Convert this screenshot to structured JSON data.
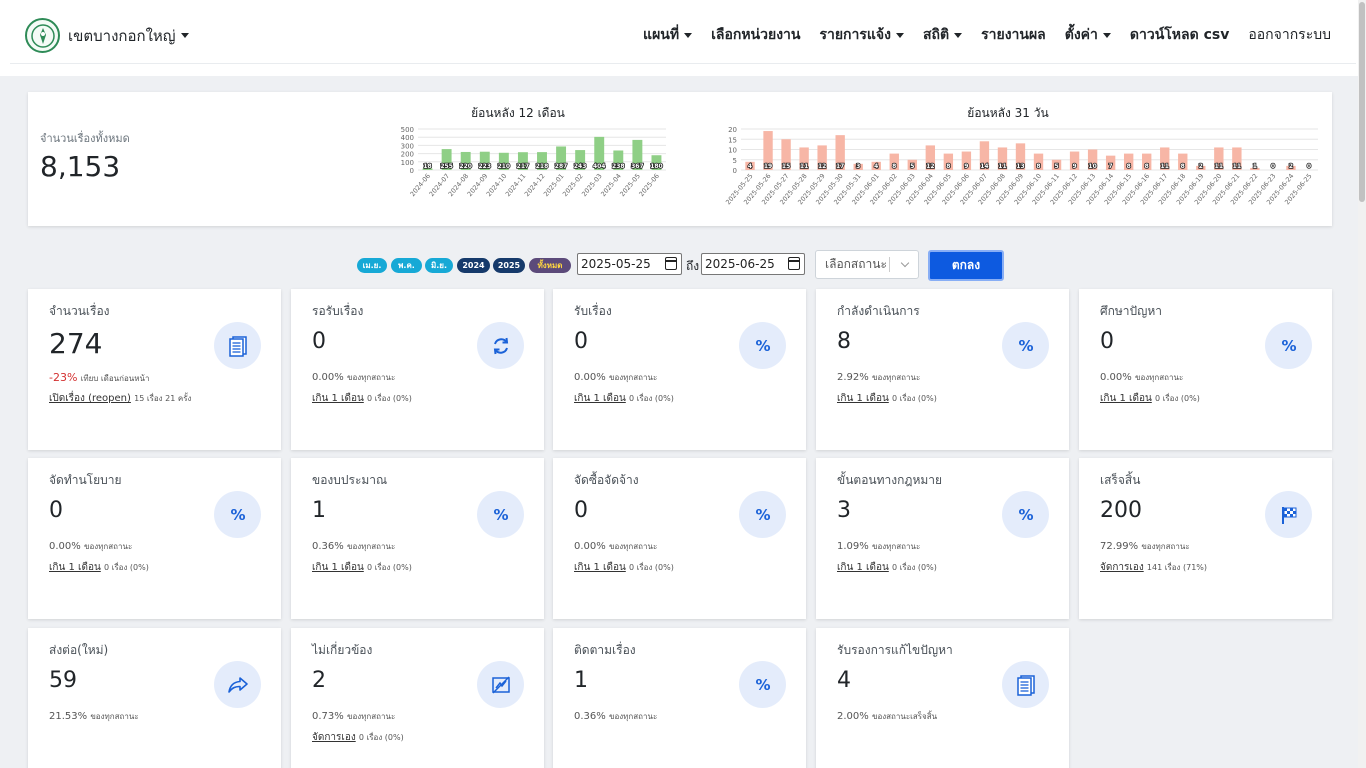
{
  "navbar": {
    "brand": "เขตบางกอกใหญ่",
    "items": [
      {
        "label": "แผนที่",
        "dropdown": true,
        "bold": true
      },
      {
        "label": "เลือกหน่วยงาน",
        "dropdown": false,
        "bold": true
      },
      {
        "label": "รายการแจ้ง",
        "dropdown": true,
        "bold": true
      },
      {
        "label": "สถิติ",
        "dropdown": true,
        "bold": true
      },
      {
        "label": "รายงานผล",
        "dropdown": false,
        "bold": true
      },
      {
        "label": "ตั้งค่า",
        "dropdown": true,
        "bold": true
      },
      {
        "label": "ดาวน์โหลด csv",
        "dropdown": false,
        "bold": true
      },
      {
        "label": "ออกจากระบบ",
        "dropdown": false,
        "bold": false
      }
    ]
  },
  "summary": {
    "label": "จำนวนเรื่องทั้งหมด",
    "total": "8,153"
  },
  "chart_data": [
    {
      "type": "bar",
      "title": "ย้อนหลัง 12 เดือน",
      "color": "#8fcf86",
      "ylim": [
        0,
        500
      ],
      "yticks": [
        "500",
        "400",
        "300",
        "200",
        "100",
        "0"
      ],
      "categories": [
        "2024-06",
        "2024-07",
        "2024-08",
        "2024-09",
        "2024-10",
        "2024-11",
        "2024-12",
        "2025-01",
        "2025-02",
        "2025-03",
        "2025-04",
        "2025-05",
        "2025-06"
      ],
      "values": [
        18,
        255,
        220,
        223,
        210,
        217,
        218,
        287,
        243,
        404,
        238,
        367,
        180
      ],
      "labels": [
        "18",
        "255",
        "220",
        "223",
        "210",
        "217",
        "218",
        "287",
        "243",
        "404",
        "238",
        "367",
        "180"
      ]
    },
    {
      "type": "bar",
      "title": "ย้อนหลัง 31 วัน",
      "color": "#f7b6a6",
      "ylim": [
        0,
        20
      ],
      "yticks": [
        "20",
        "15",
        "10",
        "5",
        "0"
      ],
      "categories": [
        "2025-05-25",
        "2025-05-26",
        "2025-05-27",
        "2025-05-28",
        "2025-05-29",
        "2025-05-30",
        "2025-05-31",
        "2025-06-01",
        "2025-06-02",
        "2025-06-03",
        "2025-06-04",
        "2025-06-05",
        "2025-06-06",
        "2025-06-07",
        "2025-06-08",
        "2025-06-09",
        "2025-06-10",
        "2025-06-11",
        "2025-06-12",
        "2025-06-13",
        "2025-06-14",
        "2025-06-15",
        "2025-06-16",
        "2025-06-17",
        "2025-06-18",
        "2025-06-19",
        "2025-06-20",
        "2025-06-21",
        "2025-06-22",
        "2025-06-23",
        "2025-06-24",
        "2025-06-25"
      ],
      "values": [
        4,
        19,
        15,
        11,
        12,
        17,
        3,
        4,
        8,
        5,
        12,
        8,
        9,
        14,
        11,
        13,
        8,
        5,
        9,
        10,
        7,
        8,
        8,
        11,
        8,
        2,
        11,
        11,
        1,
        0,
        2,
        0
      ],
      "labels": [
        "4",
        "19",
        "15",
        "11",
        "12",
        "17",
        "3",
        "4",
        "8",
        "5",
        "12",
        "8",
        "9",
        "14",
        "11",
        "13",
        "8",
        "5",
        "9",
        "10",
        "7",
        "8",
        "8",
        "11",
        "8",
        "2",
        "11",
        "11",
        "1",
        "0",
        "2",
        "0"
      ]
    }
  ],
  "filters": {
    "pills": [
      {
        "label": "เม.ย.",
        "style": "cyan"
      },
      {
        "label": "พ.ค.",
        "style": "cyan"
      },
      {
        "label": "มิ.ย.",
        "style": "cyan"
      },
      {
        "label": "2024",
        "style": "navy"
      },
      {
        "label": "2025",
        "style": "navy"
      },
      {
        "label": "ทั้งหมด",
        "style": "purple"
      }
    ],
    "date_from": "2025-05-25",
    "to_label": "ถึง",
    "date_to": "2025-06-25",
    "status_placeholder": "เลือกสถานะ",
    "ok_label": "ตกลง"
  },
  "cards": [
    {
      "title": "จำนวนเรื่อง",
      "value": "274",
      "icon": "documents-icon",
      "change": "-23%",
      "change_note": "เทียบ เดือนก่อนหน้า",
      "link": "เปิดเรื่อง (reopen)",
      "link_note": "15 เรื่อง 21 ครั้ง"
    },
    {
      "title": "รอรับเรื่อง",
      "value": "0",
      "icon": "refresh-icon",
      "pct": "0.00%",
      "pct_note": "ของทุกสถานะ",
      "link": "เกิน 1 เดือน",
      "link_note": "0 เรื่อง (0%)"
    },
    {
      "title": "รับเรื่อง",
      "value": "0",
      "icon": "percent-icon",
      "pct": "0.00%",
      "pct_note": "ของทุกสถานะ",
      "link": "เกิน 1 เดือน",
      "link_note": "0 เรื่อง (0%)"
    },
    {
      "title": "กำลังดำเนินการ",
      "value": "8",
      "icon": "percent-icon",
      "pct": "2.92%",
      "pct_note": "ของทุกสถานะ",
      "link": "เกิน 1 เดือน",
      "link_note": "0 เรื่อง (0%)"
    },
    {
      "title": "ศึกษาปัญหา",
      "value": "0",
      "icon": "percent-icon",
      "pct": "0.00%",
      "pct_note": "ของทุกสถานะ",
      "link": "เกิน 1 เดือน",
      "link_note": "0 เรื่อง (0%)"
    },
    {
      "title": "จัดทำนโยบาย",
      "value": "0",
      "icon": "percent-icon",
      "pct": "0.00%",
      "pct_note": "ของทุกสถานะ",
      "link": "เกิน 1 เดือน",
      "link_note": "0 เรื่อง (0%)"
    },
    {
      "title": "ของบประมาณ",
      "value": "1",
      "icon": "percent-icon",
      "pct": "0.36%",
      "pct_note": "ของทุกสถานะ",
      "link": "เกิน 1 เดือน",
      "link_note": "0 เรื่อง (0%)"
    },
    {
      "title": "จัดซื้อจัดจ้าง",
      "value": "0",
      "icon": "percent-icon",
      "pct": "0.00%",
      "pct_note": "ของทุกสถานะ",
      "link": "เกิน 1 เดือน",
      "link_note": "0 เรื่อง (0%)"
    },
    {
      "title": "ขั้นตอนทางกฎหมาย",
      "value": "3",
      "icon": "percent-icon",
      "pct": "1.09%",
      "pct_note": "ของทุกสถานะ",
      "link": "เกิน 1 เดือน",
      "link_note": "0 เรื่อง (0%)"
    },
    {
      "title": "เสร็จสิ้น",
      "value": "200",
      "icon": "checkered-flag-icon",
      "pct": "72.99%",
      "pct_note": "ของทุกสถานะ",
      "link": "จัดการเอง",
      "link_note": "141 เรื่อง (71%)"
    },
    {
      "title": "ส่งต่อ(ใหม่)",
      "value": "59",
      "icon": "forward-arrow-icon",
      "pct": "21.53%",
      "pct_note": "ของทุกสถานะ",
      "link": "",
      "link_note": ""
    },
    {
      "title": "ไม่เกี่ยวข้อง",
      "value": "2",
      "icon": "not-related-icon",
      "pct": "0.73%",
      "pct_note": "ของทุกสถานะ",
      "link": "จัดการเอง",
      "link_note": "0 เรื่อง (0%)"
    },
    {
      "title": "ติดตามเรื่อง",
      "value": "1",
      "icon": "percent-icon",
      "pct": "0.36%",
      "pct_note": "ของทุกสถานะ",
      "link": "",
      "link_note": ""
    },
    {
      "title": "รับรองการแก้ไขปัญหา",
      "value": "4",
      "icon": "documents-icon",
      "pct": "2.00%",
      "pct_note": "ของสถานะเสร็จสิ้น",
      "link": "",
      "link_note": ""
    }
  ]
}
